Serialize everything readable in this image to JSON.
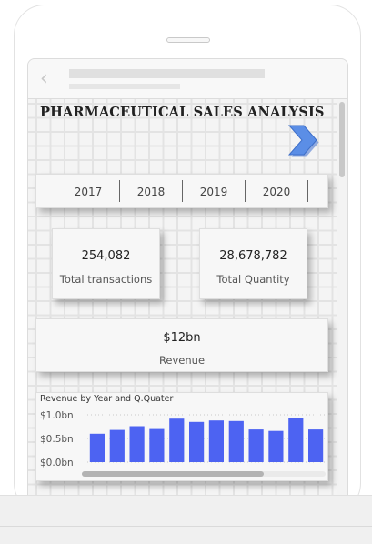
{
  "report": {
    "title": "PHARMACEUTICAL SALES ANALYSIS"
  },
  "slicer": {
    "years": [
      "2017",
      "2018",
      "2019",
      "2020"
    ]
  },
  "kpis": {
    "transactions": {
      "value": "254,082",
      "label": "Total transactions"
    },
    "quantity": {
      "value": "28,678,782",
      "label": "Total Quantity"
    },
    "revenue": {
      "value": "$12bn",
      "label": "Revenue"
    }
  },
  "colors": {
    "bar": "#4d63f2",
    "arrow": "#5b8ee6"
  },
  "icons": {
    "back": "chevron-left-icon",
    "next": "chevron-right-arrow-icon"
  },
  "chart_data": {
    "type": "bar",
    "title": "Revenue by Year and Q.Quater",
    "y_ticks": [
      "$1.0bn",
      "$0.5bn",
      "$0.0bn"
    ],
    "ylim": [
      0,
      1.0
    ],
    "values": [
      0.6,
      0.68,
      0.76,
      0.7,
      0.92,
      0.85,
      0.88,
      0.87,
      0.69,
      0.66,
      0.93,
      0.69
    ],
    "grid": true,
    "horizontal_scrollbar": true
  }
}
